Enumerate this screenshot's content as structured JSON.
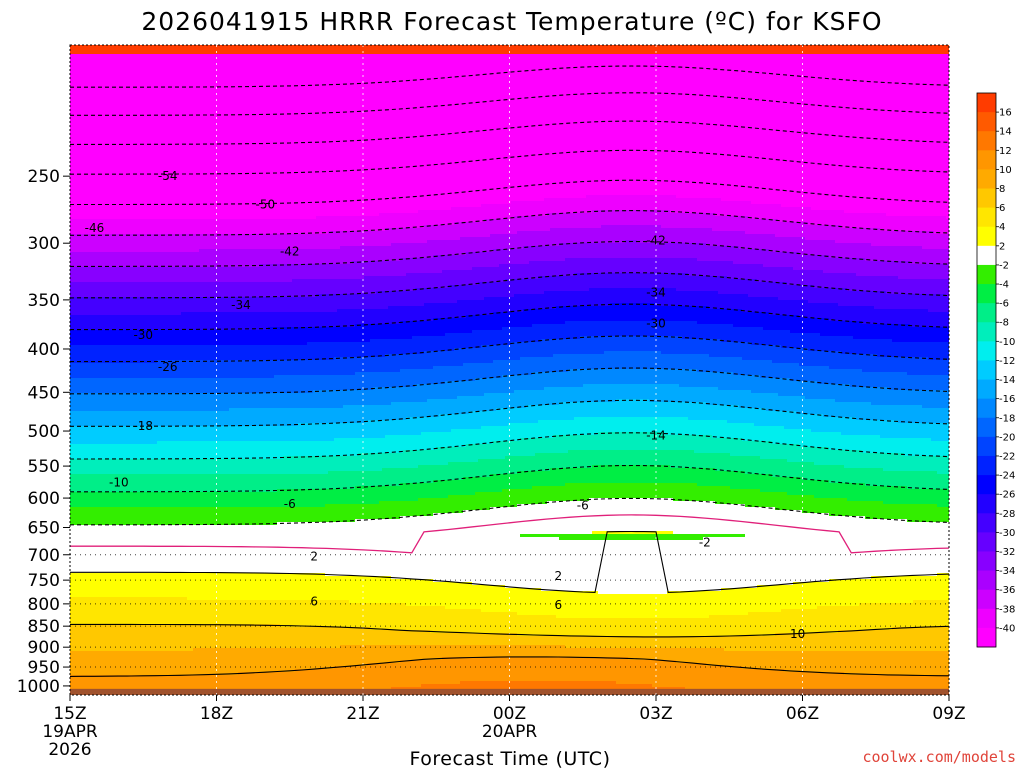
{
  "title": "2026041915 HRRR Forecast Temperature (ºC) for KSFO",
  "credit": "coolwx.com/models",
  "chart_data": {
    "type": "contour",
    "title": "2026041915 HRRR Forecast Temperature (ºC) for KSFO",
    "xlabel": "Forecast Time (UTC)",
    "ylabel": "",
    "x_ticks": [
      {
        "hour": 0,
        "label": "15Z",
        "sub": [
          "19APR",
          "2026"
        ]
      },
      {
        "hour": 3,
        "label": "18Z",
        "sub": []
      },
      {
        "hour": 6,
        "label": "21Z",
        "sub": []
      },
      {
        "hour": 9,
        "label": "00Z",
        "sub": [
          "20APR"
        ]
      },
      {
        "hour": 12,
        "label": "03Z",
        "sub": []
      },
      {
        "hour": 15,
        "label": "06Z",
        "sub": []
      },
      {
        "hour": 18,
        "label": "09Z",
        "sub": []
      }
    ],
    "xlim": [
      0,
      18
    ],
    "y_ticks": [
      250,
      300,
      350,
      400,
      450,
      500,
      550,
      600,
      650,
      700,
      750,
      800,
      850,
      900,
      950,
      1000
    ],
    "ylim": [
      1025,
      175
    ],
    "y_scale": "log",
    "x_grid": "dotted",
    "y_grid_dotted_levels": [
      700,
      750,
      800,
      850,
      900,
      950
    ],
    "colorbar": {
      "ticks": [
        "16",
        "14",
        "12",
        "10",
        "8",
        "6",
        "4",
        "2",
        "-2",
        "-4",
        "-6",
        "-8",
        "-10",
        "-12",
        "-14",
        "-16",
        "-18",
        "-20",
        "-22",
        "-24",
        "-26",
        "-28",
        "-30",
        "-32",
        "-34",
        "-36",
        "-38",
        "-40"
      ],
      "colors": [
        "#ff3c00",
        "#ff5a00",
        "#ff7800",
        "#ff9600",
        "#ffaa00",
        "#ffc800",
        "#ffe600",
        "#ffff00",
        "#ffffff",
        "#33ee00",
        "#00ee44",
        "#00ee88",
        "#00eebb",
        "#00eeee",
        "#00ccff",
        "#00aaff",
        "#0088ff",
        "#0066ff",
        "#0044ff",
        "#0022ff",
        "#0000ff",
        "#2200ff",
        "#4400ff",
        "#6600ff",
        "#8800ff",
        "#aa00ff",
        "#cc00ff",
        "#ee00ff",
        "#ff00ff"
      ]
    },
    "isotherm_labels": [
      {
        "text": "-54",
        "hour": 2.0,
        "p": 250
      },
      {
        "text": "-50",
        "hour": 4.0,
        "p": 270
      },
      {
        "text": "-46",
        "hour": 0.5,
        "p": 288
      },
      {
        "text": "-42",
        "hour": 4.5,
        "p": 307
      },
      {
        "text": "-42",
        "hour": 12.0,
        "p": 298
      },
      {
        "text": "-34",
        "hour": 3.5,
        "p": 355
      },
      {
        "text": "-34",
        "hour": 12.0,
        "p": 343
      },
      {
        "text": "-30",
        "hour": 1.5,
        "p": 385
      },
      {
        "text": "-30",
        "hour": 12.0,
        "p": 373
      },
      {
        "text": "-26",
        "hour": 2.0,
        "p": 420
      },
      {
        "text": "-18",
        "hour": 1.5,
        "p": 493
      },
      {
        "text": "-14",
        "hour": 12.0,
        "p": 506
      },
      {
        "text": "-10",
        "hour": 1.0,
        "p": 575
      },
      {
        "text": "-6",
        "hour": 4.5,
        "p": 610
      },
      {
        "text": "-6",
        "hour": 10.5,
        "p": 612
      },
      {
        "text": "-2",
        "hour": 13.0,
        "p": 677
      },
      {
        "text": "2",
        "hour": 5.0,
        "p": 703
      },
      {
        "text": "2",
        "hour": 10.0,
        "p": 742
      },
      {
        "text": "6",
        "hour": 5.0,
        "p": 795
      },
      {
        "text": "6",
        "hour": 10.0,
        "p": 803
      },
      {
        "text": "10",
        "hour": 14.9,
        "p": 868
      }
    ]
  }
}
